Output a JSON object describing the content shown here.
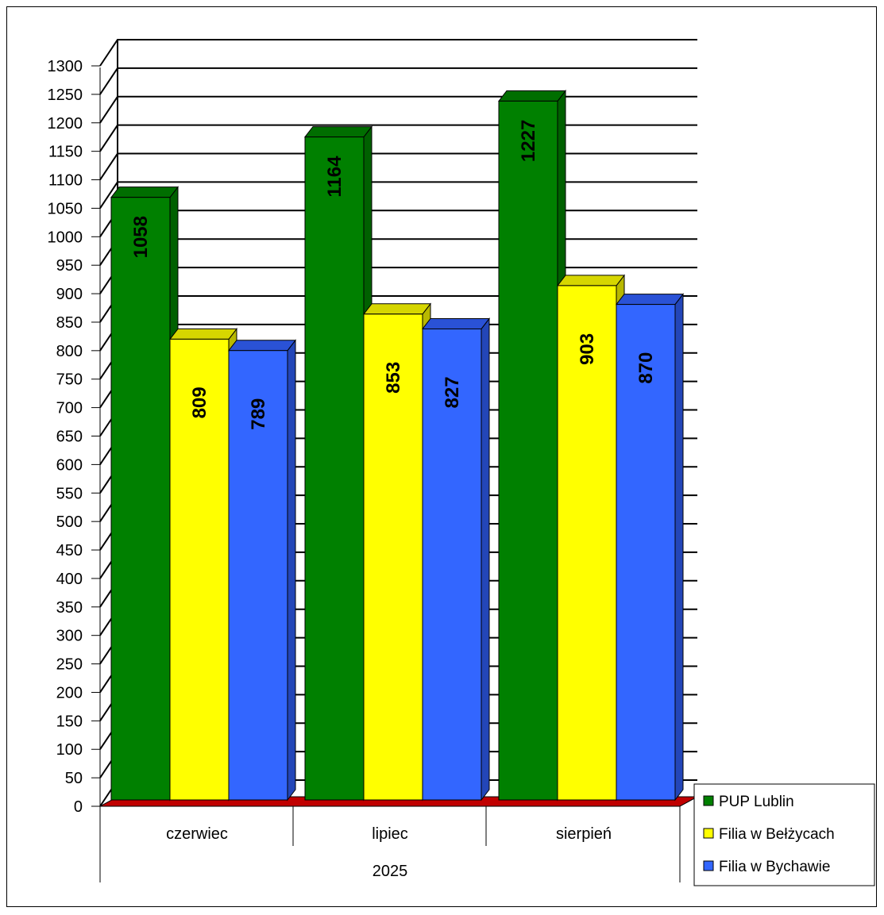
{
  "chart_data": {
    "type": "bar",
    "categories": [
      "czerwiec",
      "lipiec",
      "sierpień"
    ],
    "group_label": "2025",
    "series": [
      {
        "name": "PUP Lublin",
        "values": [
          1058,
          1164,
          1227
        ],
        "color": "#008000",
        "side": "#006000",
        "top": "#006e00"
      },
      {
        "name": "Filia w Bełżycach",
        "values": [
          809,
          853,
          903
        ],
        "color": "#ffff00",
        "side": "#b8b800",
        "top": "#d6d600"
      },
      {
        "name": "Filia w Bychawie",
        "values": [
          789,
          827,
          870
        ],
        "color": "#3366ff",
        "side": "#2346b8",
        "top": "#2a52d6"
      }
    ],
    "yticks": [
      0,
      50,
      100,
      150,
      200,
      250,
      300,
      350,
      400,
      450,
      500,
      550,
      600,
      650,
      700,
      750,
      800,
      850,
      900,
      950,
      1000,
      1050,
      1100,
      1150,
      1200,
      1250,
      1300
    ],
    "ylim": [
      0,
      1300
    ],
    "floor_color": "#c00000",
    "grid": true,
    "legend_position": "bottom-right"
  }
}
